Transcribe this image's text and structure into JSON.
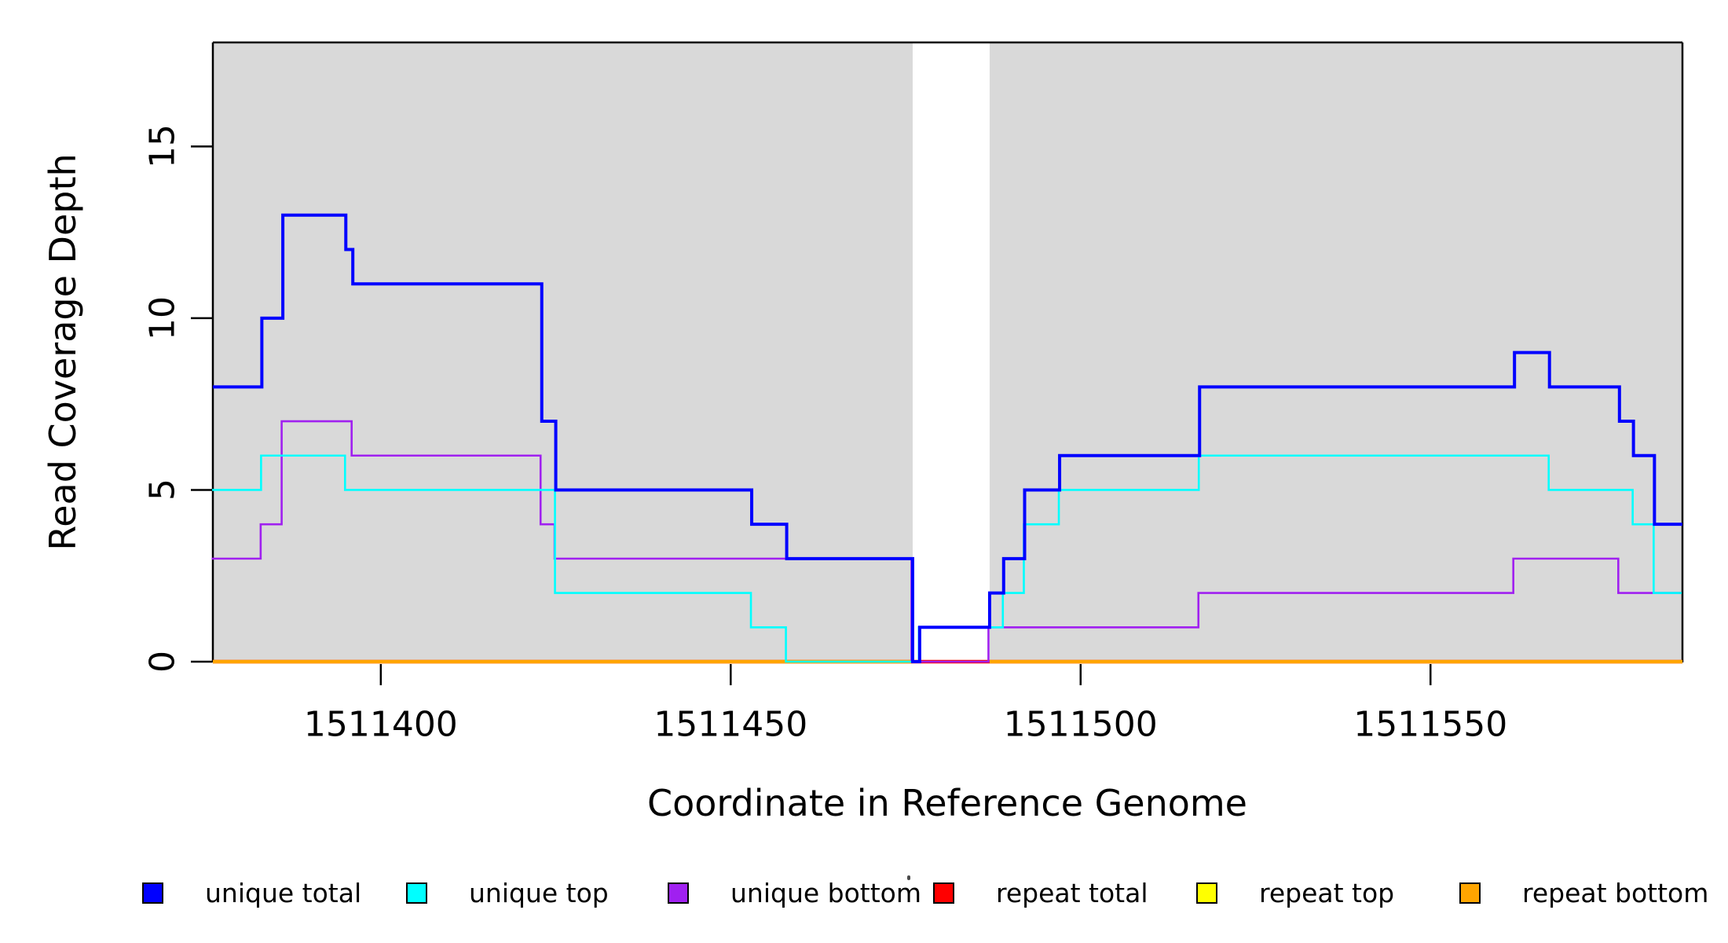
{
  "chart_data": {
    "type": "line",
    "line_style": "step",
    "title": "",
    "xlabel": "Coordinate in Reference Genome",
    "ylabel": "Read Coverage Depth",
    "xlim": [
      1511376,
      1511586
    ],
    "ylim": [
      0,
      18
    ],
    "x_ticks": [
      1511400,
      1511450,
      1511500,
      1511550
    ],
    "x_tick_labels": [
      "1511400",
      "1511450",
      "1511500",
      "1511550"
    ],
    "y_ticks": [
      0,
      5,
      10,
      15
    ],
    "y_tick_labels": [
      "0",
      "5",
      "10",
      "15"
    ],
    "grid": false,
    "legend_position": "bottom",
    "colors": {
      "axis": "#000000",
      "panel_shading": "#d9d9d9",
      "gap_background": "#ffffff"
    },
    "shaded_regions": [
      {
        "from": 1511376,
        "to": 1511476,
        "color": "#d9d9d9"
      },
      {
        "from": 1511487,
        "to": 1511586,
        "color": "#d9d9d9"
      }
    ],
    "no_data_gap": {
      "from": 1511476,
      "to": 1511487
    },
    "series": [
      {
        "name": "unique total",
        "color": "#0000ff",
        "line_width": 4,
        "segments": [
          [
            1511376,
            1511383,
            8
          ],
          [
            1511383,
            1511386,
            10
          ],
          [
            1511386,
            1511395,
            13
          ],
          [
            1511395,
            1511396,
            12
          ],
          [
            1511396,
            1511423,
            11
          ],
          [
            1511423,
            1511425,
            7
          ],
          [
            1511425,
            1511453,
            5
          ],
          [
            1511453,
            1511458,
            4
          ],
          [
            1511458,
            1511476,
            3
          ],
          [
            1511476,
            1511477,
            0
          ],
          [
            1511477,
            1511487,
            1
          ],
          [
            1511487,
            1511489,
            2
          ],
          [
            1511489,
            1511492,
            3
          ],
          [
            1511492,
            1511497,
            5
          ],
          [
            1511497,
            1511517,
            6
          ],
          [
            1511517,
            1511562,
            8
          ],
          [
            1511562,
            1511567,
            9
          ],
          [
            1511567,
            1511577,
            8
          ],
          [
            1511577,
            1511579,
            7
          ],
          [
            1511579,
            1511582,
            6
          ],
          [
            1511582,
            1511586,
            4
          ]
        ]
      },
      {
        "name": "unique top",
        "color": "#00ffff",
        "line_width": 2.6,
        "segments": [
          [
            1511376,
            1511383,
            5
          ],
          [
            1511383,
            1511395,
            6
          ],
          [
            1511395,
            1511425,
            5
          ],
          [
            1511425,
            1511453,
            2
          ],
          [
            1511453,
            1511458,
            1
          ],
          [
            1511458,
            1511477,
            0
          ],
          [
            1511477,
            1511489,
            1
          ],
          [
            1511489,
            1511492,
            2
          ],
          [
            1511492,
            1511497,
            4
          ],
          [
            1511497,
            1511517,
            5
          ],
          [
            1511517,
            1511567,
            6
          ],
          [
            1511567,
            1511579,
            5
          ],
          [
            1511579,
            1511582,
            4
          ],
          [
            1511582,
            1511586,
            2
          ]
        ]
      },
      {
        "name": "unique bottom",
        "color": "#a020f0",
        "line_width": 2.6,
        "segments": [
          [
            1511376,
            1511383,
            3
          ],
          [
            1511383,
            1511386,
            4
          ],
          [
            1511386,
            1511396,
            7
          ],
          [
            1511396,
            1511423,
            6
          ],
          [
            1511423,
            1511425,
            4
          ],
          [
            1511425,
            1511476,
            3
          ],
          [
            1511476,
            1511487,
            0
          ],
          [
            1511487,
            1511517,
            1
          ],
          [
            1511517,
            1511562,
            2
          ],
          [
            1511562,
            1511577,
            3
          ],
          [
            1511577,
            1511586,
            2
          ]
        ]
      },
      {
        "name": "repeat total",
        "color": "#ff0000",
        "line_width": 4.5,
        "segments": [
          [
            1511376,
            1511586,
            0
          ]
        ]
      },
      {
        "name": "repeat top",
        "color": "#ffff00",
        "line_width": 2.5,
        "segments": [
          [
            1511376,
            1511586,
            0
          ]
        ]
      },
      {
        "name": "repeat bottom",
        "color": "#ffa500",
        "line_width": 4.5,
        "segments": [
          [
            1511376,
            1511586,
            0
          ]
        ]
      }
    ]
  }
}
